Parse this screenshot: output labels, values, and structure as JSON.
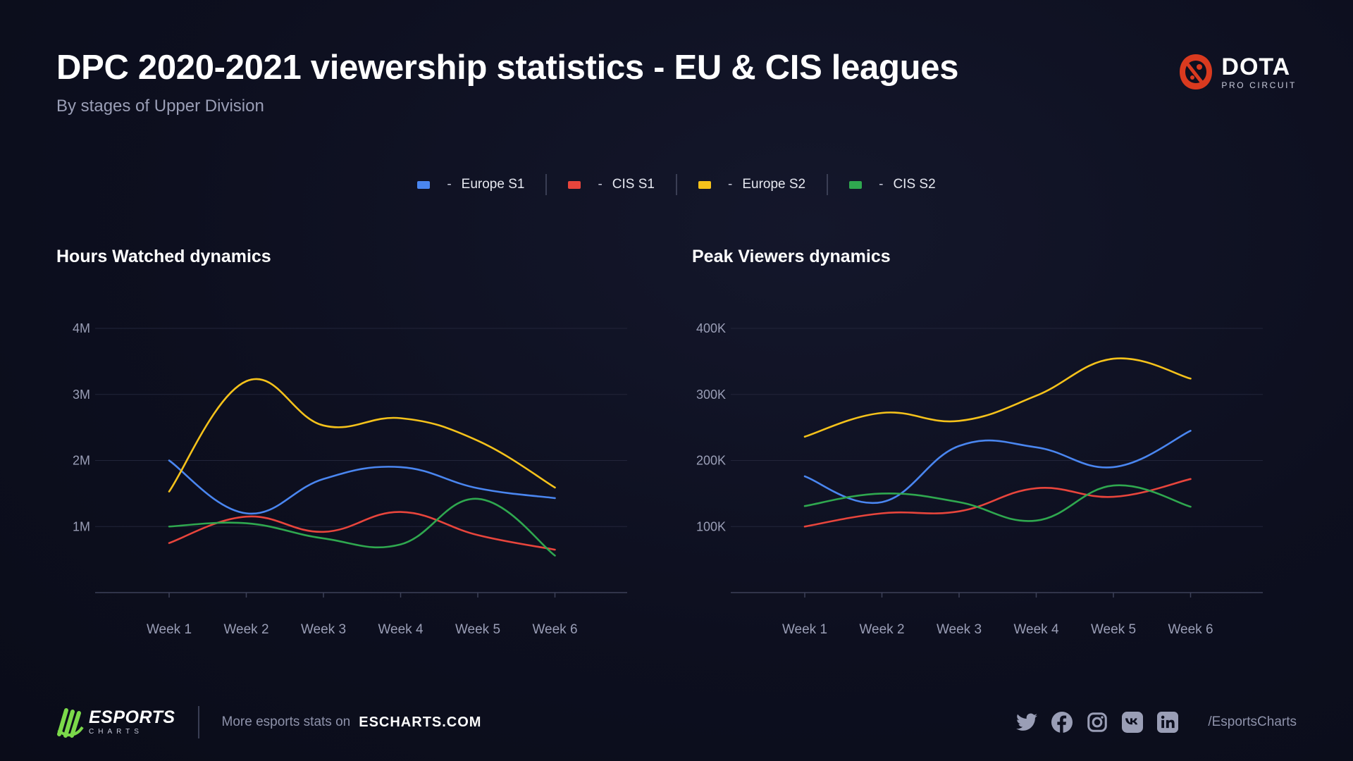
{
  "header": {
    "title": "DPC 2020-2021 viewership statistics - EU & CIS leagues",
    "subtitle": "By stages of Upper Division"
  },
  "brand": {
    "main": "DOTA",
    "sub": "PRO CIRCUIT",
    "icon": "dota-logo-icon",
    "color": "#d93a1f"
  },
  "legend": [
    {
      "label": "Europe S1",
      "color": "#4a86f0"
    },
    {
      "label": "CIS S1",
      "color": "#e8453c"
    },
    {
      "label": "Europe S2",
      "color": "#f5c21b"
    },
    {
      "label": "CIS S2",
      "color": "#2fa84f"
    }
  ],
  "legend_separator": "-",
  "chart_data": [
    {
      "type": "line",
      "title": "Hours Watched dynamics",
      "categories": [
        "Week 1",
        "Week 2",
        "Week 3",
        "Week 4",
        "Week 5",
        "Week 6"
      ],
      "yticks": [
        1000000,
        2000000,
        3000000,
        4000000
      ],
      "ytick_labels": [
        "1M",
        "2M",
        "3M",
        "4M"
      ],
      "ylim": [
        0,
        4000000
      ],
      "grid": true,
      "series": [
        {
          "name": "Europe S1",
          "color": "#4a86f0",
          "values": [
            2000000,
            1200000,
            1720000,
            1900000,
            1580000,
            1430000
          ]
        },
        {
          "name": "CIS S1",
          "color": "#e8453c",
          "values": [
            750000,
            1150000,
            920000,
            1220000,
            870000,
            650000
          ]
        },
        {
          "name": "Europe S2",
          "color": "#f5c21b",
          "values": [
            1530000,
            3200000,
            2530000,
            2640000,
            2300000,
            1590000
          ]
        },
        {
          "name": "CIS S2",
          "color": "#2fa84f",
          "values": [
            1000000,
            1050000,
            820000,
            730000,
            1420000,
            560000
          ]
        }
      ]
    },
    {
      "type": "line",
      "title": "Peak Viewers dynamics",
      "categories": [
        "Week 1",
        "Week 2",
        "Week 3",
        "Week 4",
        "Week 5",
        "Week 6"
      ],
      "yticks": [
        100000,
        200000,
        300000,
        400000
      ],
      "ytick_labels": [
        "100K",
        "200K",
        "300K",
        "400K"
      ],
      "ylim": [
        0,
        400000
      ],
      "grid": true,
      "series": [
        {
          "name": "Europe S1",
          "color": "#4a86f0",
          "values": [
            176000,
            137000,
            222000,
            220000,
            190000,
            245000
          ]
        },
        {
          "name": "CIS S1",
          "color": "#e8453c",
          "values": [
            100000,
            120000,
            123000,
            158000,
            145000,
            172000
          ]
        },
        {
          "name": "Europe S2",
          "color": "#f5c21b",
          "values": [
            236000,
            272000,
            260000,
            298000,
            354000,
            324000
          ]
        },
        {
          "name": "CIS S2",
          "color": "#2fa84f",
          "values": [
            131000,
            150000,
            137000,
            109000,
            162000,
            130000
          ]
        }
      ]
    }
  ],
  "footer": {
    "logo_main": "ESPORTS",
    "logo_sub": "CHARTS",
    "logo_color": "#7bd94a",
    "more_text": "More esports stats on",
    "link": "ESCHARTS.COM",
    "social_icons": [
      "twitter-icon",
      "facebook-icon",
      "instagram-icon",
      "vk-icon",
      "linkedin-icon"
    ],
    "handle": "/EsportsCharts"
  }
}
